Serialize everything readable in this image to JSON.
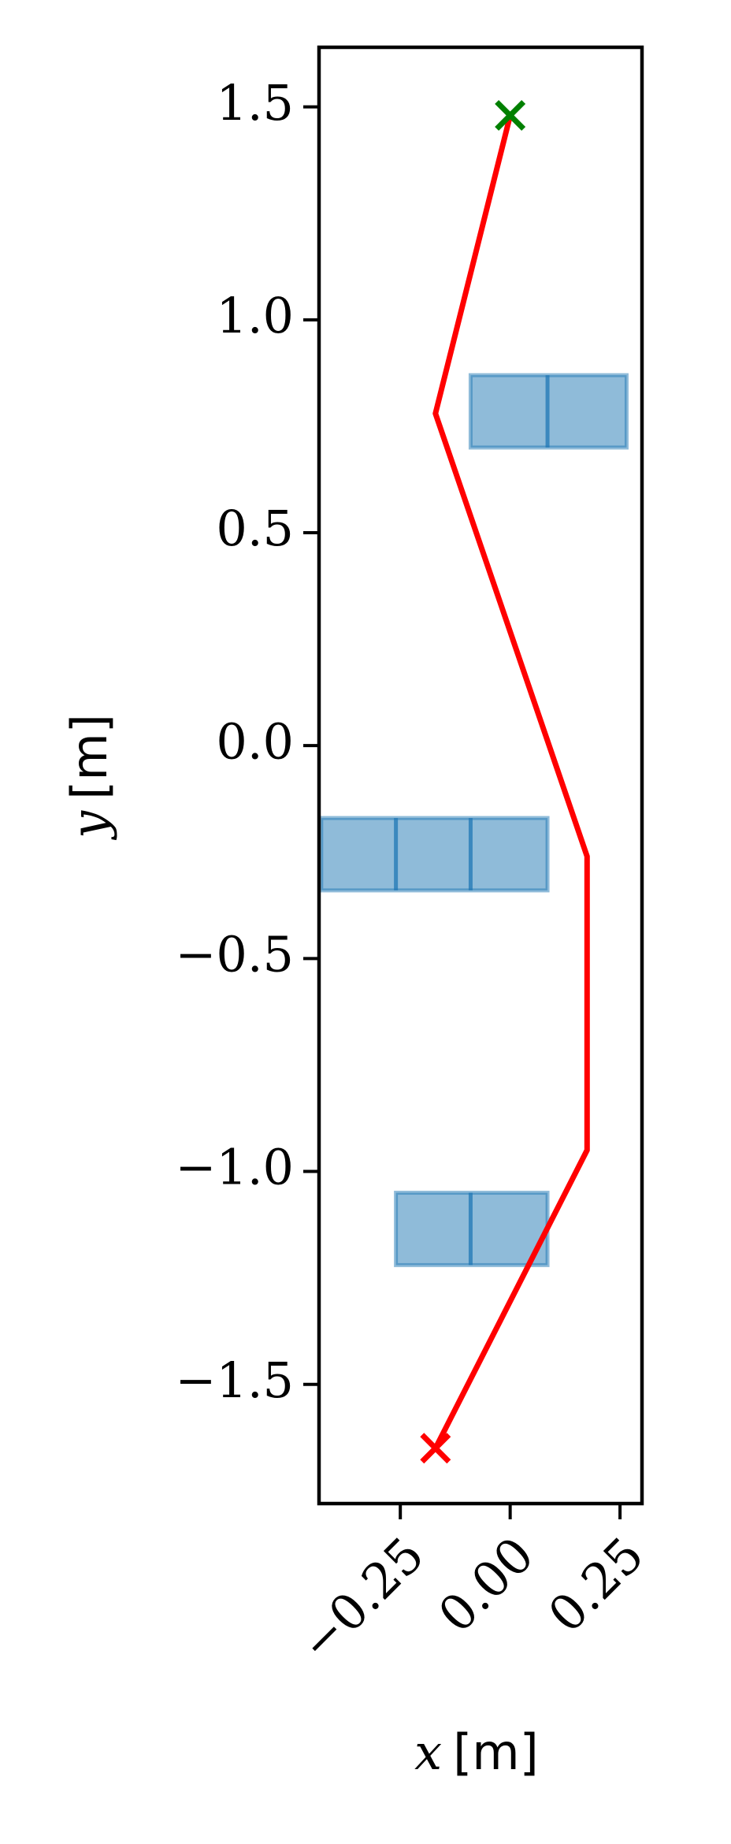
{
  "chart_data": {
    "type": "line",
    "xlabel_var": "x",
    "xlabel_unit": "[m]",
    "ylabel_var": "y",
    "ylabel_unit": "[m]",
    "xlim": [
      -0.435,
      0.3
    ],
    "ylim": [
      -1.78,
      1.64
    ],
    "x_ticks": [
      {
        "value": -0.25,
        "label": "−0.25"
      },
      {
        "value": 0.0,
        "label": "0.00"
      },
      {
        "value": 0.25,
        "label": "0.25"
      }
    ],
    "y_ticks": [
      {
        "value": 1.5,
        "label": "1.5"
      },
      {
        "value": 1.0,
        "label": "1.0"
      },
      {
        "value": 0.5,
        "label": "0.5"
      },
      {
        "value": 0.0,
        "label": "0.0"
      },
      {
        "value": -0.5,
        "label": "−0.5"
      },
      {
        "value": -1.0,
        "label": "−1.0"
      },
      {
        "value": -1.5,
        "label": "−1.5"
      }
    ],
    "grid": false,
    "path": {
      "color": "#ff0000",
      "points": [
        {
          "x": -0.17,
          "y": -1.65
        },
        {
          "x": 0.175,
          "y": -0.95
        },
        {
          "x": 0.175,
          "y": -0.26
        },
        {
          "x": -0.17,
          "y": 0.78
        },
        {
          "x": 0.0,
          "y": 1.48
        }
      ]
    },
    "start_marker": {
      "x": -0.17,
      "y": -1.65,
      "color": "#ff0000",
      "symbol": "x"
    },
    "goal_marker": {
      "x": 0.0,
      "y": 1.48,
      "color": "#008000",
      "symbol": "x"
    },
    "obstacles_color": "#1f77b4",
    "obstacles": [
      {
        "x0": -0.09,
        "x1": 0.265,
        "y0": 0.7,
        "y1": 0.87,
        "dividers": [
          0.085
        ]
      },
      {
        "x0": -0.43,
        "x1": 0.085,
        "y0": -0.34,
        "y1": -0.17,
        "dividers": [
          -0.26,
          -0.09
        ]
      },
      {
        "x0": -0.26,
        "x1": 0.085,
        "y0": -1.22,
        "y1": -1.05,
        "dividers": [
          -0.09
        ]
      }
    ]
  }
}
